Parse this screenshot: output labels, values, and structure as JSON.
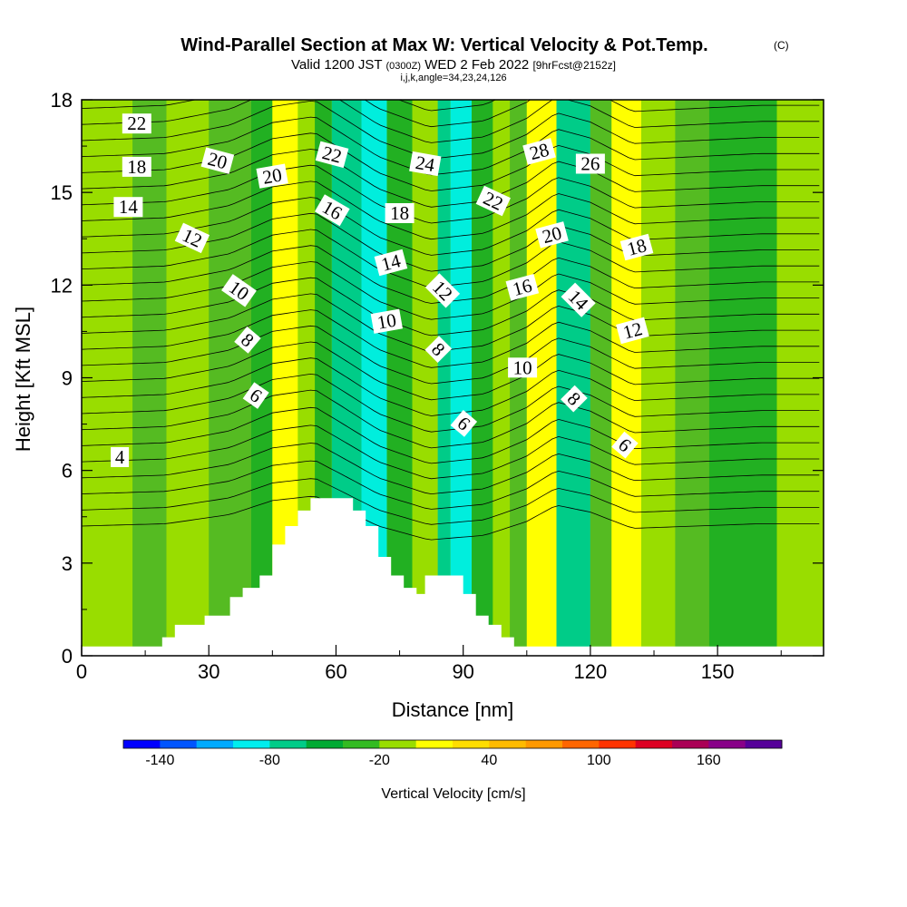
{
  "title": {
    "main": "Wind-Parallel Section at Max W: Vertical Velocity & Pot.Temp.",
    "copyright": "(C)",
    "valid_prefix": "Valid 1200 JST",
    "valid_zulu": "(0300Z)",
    "valid_date": "WED 2 Feb 2022",
    "forecast": "[9hrFcst@2152z]",
    "ijk": "i,j,k,angle=34,23,24,126"
  },
  "chart_data": {
    "type": "heatmap",
    "xlabel": "Distance [nm]",
    "ylabel": "Height [Kft MSL]",
    "xlim": [
      0,
      175
    ],
    "ylim": [
      0,
      18
    ],
    "x_ticks": [
      0,
      30,
      60,
      90,
      120,
      150
    ],
    "y_ticks": [
      0,
      3,
      6,
      9,
      12,
      15,
      18
    ],
    "colorbar": {
      "label": "Vertical Velocity [cm/s]",
      "tick_values": [
        -140,
        -80,
        -20,
        40,
        100,
        160
      ],
      "tick_labels": [
        "-140",
        "-80",
        "-20",
        "40",
        "100",
        "160"
      ],
      "bin_width": 20,
      "bin_colors": [
        "#0000ff",
        "#0055ff",
        "#00aaff",
        "#00eeee",
        "#00cc88",
        "#00aa33",
        "#33bb22",
        "#99dd00",
        "#ffff00",
        "#ffdd00",
        "#ffbb00",
        "#ff9900",
        "#ff6600",
        "#ff3300",
        "#dd0022",
        "#aa0055",
        "#880088",
        "#550099"
      ]
    },
    "field_colors": {
      "neg_strong": "#00eedd",
      "neg_mod": "#00cc88",
      "neg_weak": "#22b022",
      "near_zero_low": "#55bb22",
      "near_zero": "#99dd00",
      "pos_weak": "#ffff00",
      "pos_mod": "#ffdd00"
    },
    "field_bands": [
      {
        "x": 0,
        "w": 12,
        "z": 18,
        "level": "near_zero"
      },
      {
        "x": 12,
        "w": 8,
        "z": 18,
        "level": "near_zero_low"
      },
      {
        "x": 20,
        "w": 10,
        "z": 18,
        "level": "near_zero"
      },
      {
        "x": 30,
        "w": 10,
        "z": 18,
        "level": "near_zero_low"
      },
      {
        "x": 40,
        "w": 5,
        "z": 18,
        "level": "neg_weak"
      },
      {
        "x": 45,
        "w": 6,
        "z": 18,
        "level": "pos_weak"
      },
      {
        "x": 51,
        "w": 4,
        "z": 18,
        "level": "near_zero"
      },
      {
        "x": 55,
        "w": 4,
        "z": 18,
        "level": "neg_weak"
      },
      {
        "x": 59,
        "w": 7,
        "z": 18,
        "level": "neg_mod"
      },
      {
        "x": 66,
        "w": 6,
        "z": 18,
        "level": "neg_strong"
      },
      {
        "x": 72,
        "w": 6,
        "z": 18,
        "level": "neg_weak"
      },
      {
        "x": 78,
        "w": 6,
        "z": 18,
        "level": "near_zero"
      },
      {
        "x": 84,
        "w": 3,
        "z": 18,
        "level": "neg_mod"
      },
      {
        "x": 87,
        "w": 5,
        "z": 18,
        "level": "neg_strong"
      },
      {
        "x": 92,
        "w": 5,
        "z": 18,
        "level": "neg_weak"
      },
      {
        "x": 97,
        "w": 4,
        "z": 18,
        "level": "near_zero"
      },
      {
        "x": 101,
        "w": 4,
        "z": 18,
        "level": "near_zero_low"
      },
      {
        "x": 105,
        "w": 7,
        "z": 18,
        "level": "pos_weak"
      },
      {
        "x": 112,
        "w": 8,
        "z": 18,
        "level": "neg_mod"
      },
      {
        "x": 120,
        "w": 5,
        "z": 18,
        "level": "near_zero_low"
      },
      {
        "x": 125,
        "w": 7,
        "z": 18,
        "level": "pos_weak"
      },
      {
        "x": 132,
        "w": 8,
        "z": 18,
        "level": "near_zero"
      },
      {
        "x": 140,
        "w": 8,
        "z": 18,
        "level": "near_zero_low"
      },
      {
        "x": 148,
        "w": 16,
        "z": 18,
        "level": "neg_weak"
      },
      {
        "x": 164,
        "w": 11,
        "z": 18,
        "level": "near_zero"
      }
    ],
    "terrain": [
      [
        0,
        0.3
      ],
      [
        19,
        0.3
      ],
      [
        19,
        0.6
      ],
      [
        22,
        0.6
      ],
      [
        22,
        1.0
      ],
      [
        29,
        1.0
      ],
      [
        29,
        1.3
      ],
      [
        35,
        1.3
      ],
      [
        35,
        1.9
      ],
      [
        38,
        1.9
      ],
      [
        38,
        2.2
      ],
      [
        42,
        2.2
      ],
      [
        42,
        2.6
      ],
      [
        45,
        2.6
      ],
      [
        45,
        3.6
      ],
      [
        48,
        3.6
      ],
      [
        48,
        4.2
      ],
      [
        51,
        4.2
      ],
      [
        51,
        4.7
      ],
      [
        54,
        4.7
      ],
      [
        54,
        5.1
      ],
      [
        64,
        5.1
      ],
      [
        64,
        4.7
      ],
      [
        67,
        4.7
      ],
      [
        67,
        4.2
      ],
      [
        70,
        4.2
      ],
      [
        70,
        3.2
      ],
      [
        73,
        3.2
      ],
      [
        73,
        2.6
      ],
      [
        76,
        2.6
      ],
      [
        76,
        2.2
      ],
      [
        79,
        2.2
      ],
      [
        79,
        2.0
      ],
      [
        81,
        2.0
      ],
      [
        81,
        2.6
      ],
      [
        90,
        2.6
      ],
      [
        90,
        2.0
      ],
      [
        93,
        2.0
      ],
      [
        93,
        1.3
      ],
      [
        96,
        1.3
      ],
      [
        96,
        1.0
      ],
      [
        99,
        1.0
      ],
      [
        99,
        0.6
      ],
      [
        102,
        0.6
      ],
      [
        102,
        0.3
      ],
      [
        175,
        0.3
      ]
    ],
    "isentropes": {
      "base_z": 4.2,
      "spacing": 0.52,
      "count": 30,
      "wave": [
        [
          0,
          0
        ],
        [
          20,
          0.1
        ],
        [
          35,
          0.5
        ],
        [
          45,
          1.1
        ],
        [
          55,
          1.3
        ],
        [
          62,
          0.7
        ],
        [
          70,
          0.0
        ],
        [
          82,
          -0.6
        ],
        [
          95,
          -0.4
        ],
        [
          105,
          0.2
        ],
        [
          112,
          0.9
        ],
        [
          120,
          0.6
        ],
        [
          130,
          -0.1
        ],
        [
          145,
          0.0
        ],
        [
          160,
          0.1
        ],
        [
          175,
          0.1
        ]
      ]
    },
    "contour_labels": [
      {
        "text": "22",
        "x": 13,
        "z": 17.2,
        "rot": 0
      },
      {
        "text": "18",
        "x": 13,
        "z": 15.8,
        "rot": 0
      },
      {
        "text": "14",
        "x": 11,
        "z": 14.5,
        "rot": 0
      },
      {
        "text": "20",
        "x": 32,
        "z": 16.0,
        "rot": 15
      },
      {
        "text": "20",
        "x": 45,
        "z": 15.5,
        "rot": -10
      },
      {
        "text": "12",
        "x": 26,
        "z": 13.5,
        "rot": 25
      },
      {
        "text": "10",
        "x": 37,
        "z": 11.8,
        "rot": 35
      },
      {
        "text": "8",
        "x": 39,
        "z": 10.2,
        "rot": 40
      },
      {
        "text": "6",
        "x": 41,
        "z": 8.4,
        "rot": 35
      },
      {
        "text": "4",
        "x": 9,
        "z": 6.4,
        "rot": 0
      },
      {
        "text": "22",
        "x": 59,
        "z": 16.2,
        "rot": 15
      },
      {
        "text": "16",
        "x": 59,
        "z": 14.4,
        "rot": 30
      },
      {
        "text": "18",
        "x": 75,
        "z": 14.3,
        "rot": 0
      },
      {
        "text": "24",
        "x": 81,
        "z": 15.9,
        "rot": 10
      },
      {
        "text": "14",
        "x": 73,
        "z": 12.7,
        "rot": -15
      },
      {
        "text": "10",
        "x": 72,
        "z": 10.8,
        "rot": -10
      },
      {
        "text": "12",
        "x": 85,
        "z": 11.8,
        "rot": 45
      },
      {
        "text": "8",
        "x": 84,
        "z": 9.9,
        "rot": 45
      },
      {
        "text": "6",
        "x": 90,
        "z": 7.5,
        "rot": 40
      },
      {
        "text": "22",
        "x": 97,
        "z": 14.7,
        "rot": 25
      },
      {
        "text": "28",
        "x": 108,
        "z": 16.3,
        "rot": -15
      },
      {
        "text": "26",
        "x": 120,
        "z": 15.9,
        "rot": 0
      },
      {
        "text": "20",
        "x": 111,
        "z": 13.6,
        "rot": -15
      },
      {
        "text": "18",
        "x": 131,
        "z": 13.2,
        "rot": -15
      },
      {
        "text": "16",
        "x": 104,
        "z": 11.9,
        "rot": -15
      },
      {
        "text": "14",
        "x": 117,
        "z": 11.5,
        "rot": 45
      },
      {
        "text": "12",
        "x": 130,
        "z": 10.5,
        "rot": -15
      },
      {
        "text": "10",
        "x": 104,
        "z": 9.3,
        "rot": 0
      },
      {
        "text": "8",
        "x": 116,
        "z": 8.3,
        "rot": 45
      },
      {
        "text": "6",
        "x": 128,
        "z": 6.8,
        "rot": 40
      }
    ]
  }
}
